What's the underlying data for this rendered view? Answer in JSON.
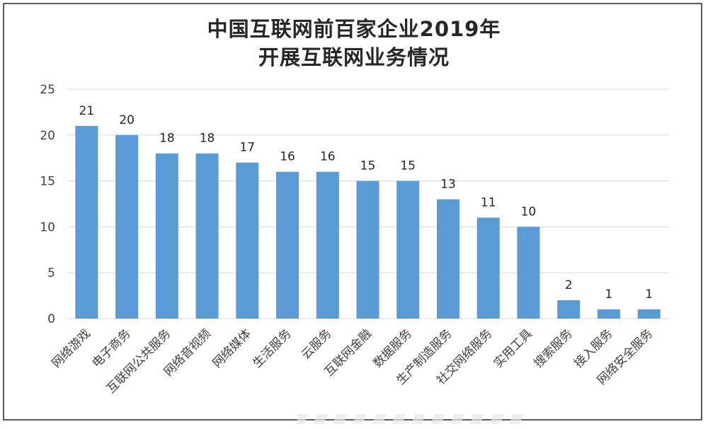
{
  "chart_data": {
    "type": "bar",
    "title_line1": "中国互联网前百家企业2019年",
    "title_line2": "开展互联网业务情况",
    "categories": [
      "网络游戏",
      "电子商务",
      "互联网公共服务",
      "网络音视频",
      "网络媒体",
      "生活服务",
      "云服务",
      "互联网金融",
      "数据服务",
      "生产制造服务",
      "社交网络服务",
      "实用工具",
      "搜索服务",
      "接入服务",
      "网络安全服务"
    ],
    "values": [
      21,
      20,
      18,
      18,
      17,
      16,
      16,
      15,
      15,
      13,
      11,
      10,
      2,
      1,
      1
    ],
    "ylim": [
      0,
      25
    ],
    "yticks": [
      0,
      5,
      10,
      15,
      20,
      25
    ],
    "grid": true,
    "bar_color": "#5b9bd5",
    "grid_color": "#d9d9d9"
  }
}
